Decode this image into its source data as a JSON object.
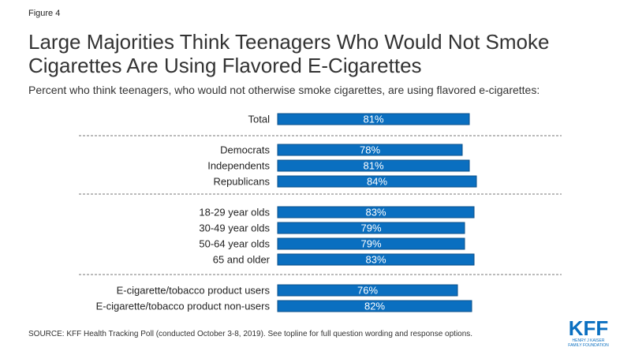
{
  "figure_label": "Figure 4",
  "title": "Large Majorities Think Teenagers Who Would Not Smoke Cigarettes Are Using Flavored E-Cigarettes",
  "subtitle": "Percent who think teenagers, who would not otherwise smoke cigarettes, are using flavored e-cigarettes:",
  "source": "SOURCE: KFF Health Tracking Poll (conducted October 3-8, 2019). See topline for full question wording and response options.",
  "logo": {
    "text": "KFF",
    "line1": "HENRY J KAISER",
    "line2": "FAMILY FOUNDATION"
  },
  "colors": {
    "bar": "#0a6fc0",
    "bar_edge": "#0a4f8a",
    "divider": "#777777",
    "logo": "#0a6fc0"
  },
  "chart_data": {
    "type": "bar",
    "orientation": "horizontal",
    "categories": [
      "Total",
      "Democrats",
      "Independents",
      "Republicans",
      "18-29 year olds",
      "30-49 year olds",
      "50-64 year olds",
      "65 and older",
      "E-cigarette/tobacco product users",
      "E-cigarette/tobacco product non-users"
    ],
    "values": [
      81,
      78,
      81,
      84,
      83,
      79,
      79,
      83,
      76,
      82
    ],
    "data_labels": [
      "81%",
      "78%",
      "81%",
      "84%",
      "83%",
      "79%",
      "79%",
      "83%",
      "76%",
      "82%"
    ],
    "groups": [
      [
        0
      ],
      [
        1,
        2,
        3
      ],
      [
        4,
        5,
        6,
        7
      ],
      [
        8,
        9
      ]
    ],
    "xlim": [
      0,
      100
    ],
    "grid": false,
    "legend": "none"
  }
}
